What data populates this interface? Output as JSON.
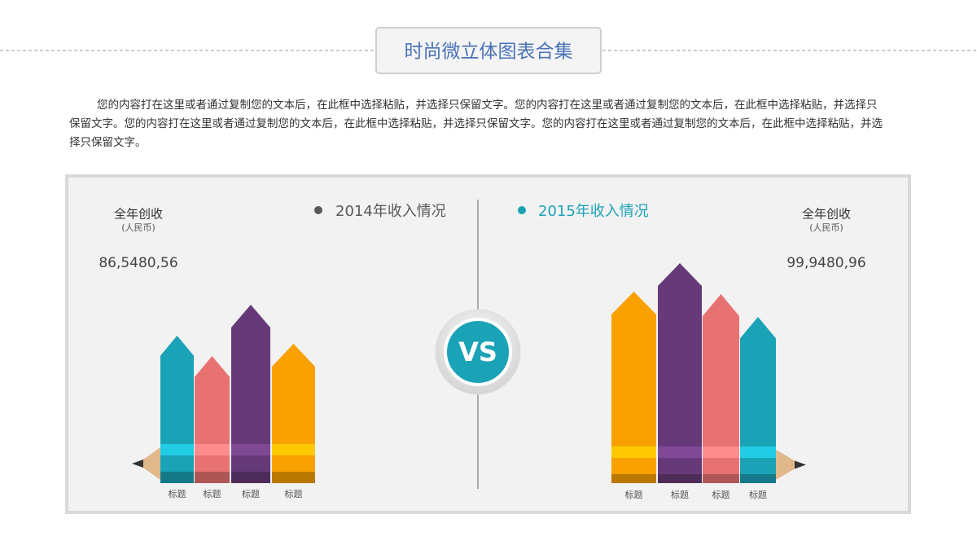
{
  "header": {
    "title": "时尚微立体图表合集"
  },
  "body": {
    "text": "您的内容打在这里或者通过复制您的文本后，在此框中选择粘贴，并选择只保留文字。您的内容打在这里或者通过复制您的文本后，在此框中选择粘贴，并选择只保留文字。您的内容打在这里或者通过复制您的文本后，在此框中选择粘贴，并选择只保留文字。您的内容打在这里或者通过复制您的文本后，在此框中选择粘贴，并选择只保留文字。"
  },
  "vs_label": "VS",
  "chart_data": [
    {
      "type": "bar",
      "title": "2014年收入情况",
      "total_label": "全年创收",
      "unit_label": "(人民币)",
      "total": "86,5480,56",
      "legend_color": "#595959",
      "categories": [
        "标题",
        "标题",
        "标题",
        "标题"
      ],
      "values": [
        133,
        108,
        171,
        123
      ],
      "colors": [
        "#1aa3b6",
        "#e87171",
        "#663a78",
        "#f9a100"
      ]
    },
    {
      "type": "bar",
      "title": "2015年收入情况",
      "total_label": "全年创收",
      "unit_label": "(人民币)",
      "total": "99,9480,96",
      "legend_color": "#1aa3b6",
      "categories": [
        "标题",
        "标题",
        "标题",
        "标题"
      ],
      "values": [
        190,
        225,
        187,
        159
      ],
      "colors": [
        "#f9a100",
        "#663a78",
        "#e87171",
        "#1aa3b6"
      ]
    }
  ]
}
